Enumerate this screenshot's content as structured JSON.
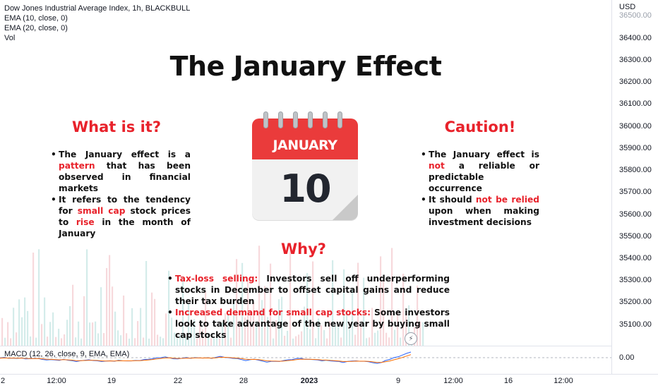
{
  "chart_header": {
    "symbol_line": "Dow Jones Industrial Average Index, 1h, BLACKBULL",
    "indicator_1": "EMA (10, close, 0)",
    "indicator_2": "EMA (20, close, 0)",
    "indicator_3": "Vol"
  },
  "price_scale": {
    "currency": "USD",
    "ticks": [
      "36500.00",
      "36400.00",
      "36300.00",
      "36200.00",
      "36100.00",
      "36000.00",
      "35900.00",
      "35800.00",
      "35700.00",
      "35600.00",
      "35500.00",
      "35400.00",
      "35300.00",
      "35200.00",
      "35100.00"
    ]
  },
  "macd_pane": {
    "label": "MACD (12, 26, close, 9, EMA, EMA)",
    "zero_label": "0.00"
  },
  "time_axis": {
    "ticks": [
      "2",
      "12:00",
      "19",
      "22",
      "28",
      "2023",
      "9",
      "12:00",
      "16",
      "12:00"
    ]
  },
  "infographic": {
    "title": "The January Effect",
    "what": {
      "heading": "What is it?",
      "b1_pre": "The January effect is a ",
      "b1_hl": "pattern",
      "b1_post": " that has been observed in financial markets",
      "b2_pre": "It refers to the tendency for ",
      "b2_hl1": "small cap",
      "b2_mid": " stock prices to ",
      "b2_hl2": "rise",
      "b2_post": " in the month of January"
    },
    "calendar": {
      "month": "JANUARY",
      "day": "10"
    },
    "caution": {
      "heading": "Caution!",
      "b1_pre": "The January effect is ",
      "b1_hl": "not",
      "b1_post": " a reliable or predictable occurrence",
      "b2_pre": "It should ",
      "b2_hl": "not be relied",
      "b2_post": " upon when making investment decisions"
    },
    "why": {
      "heading": "Why?",
      "b1_hl": "Tax-loss selling:",
      "b1_post": " Investors sell off underperforming stocks in December to offset capital gains and reduce their tax burden",
      "b2_hl": "Increased demand for small cap stocks:",
      "b2_post": " Some investors look to take advantage of the new year by buying small cap stocks"
    }
  },
  "colors": {
    "accent_red": "#e8222b",
    "calendar_red": "#ea3b3b",
    "macd_line": "#2962ff",
    "signal_line": "#ff6d00"
  },
  "icons": {
    "live_indicator": "lightning-icon"
  }
}
